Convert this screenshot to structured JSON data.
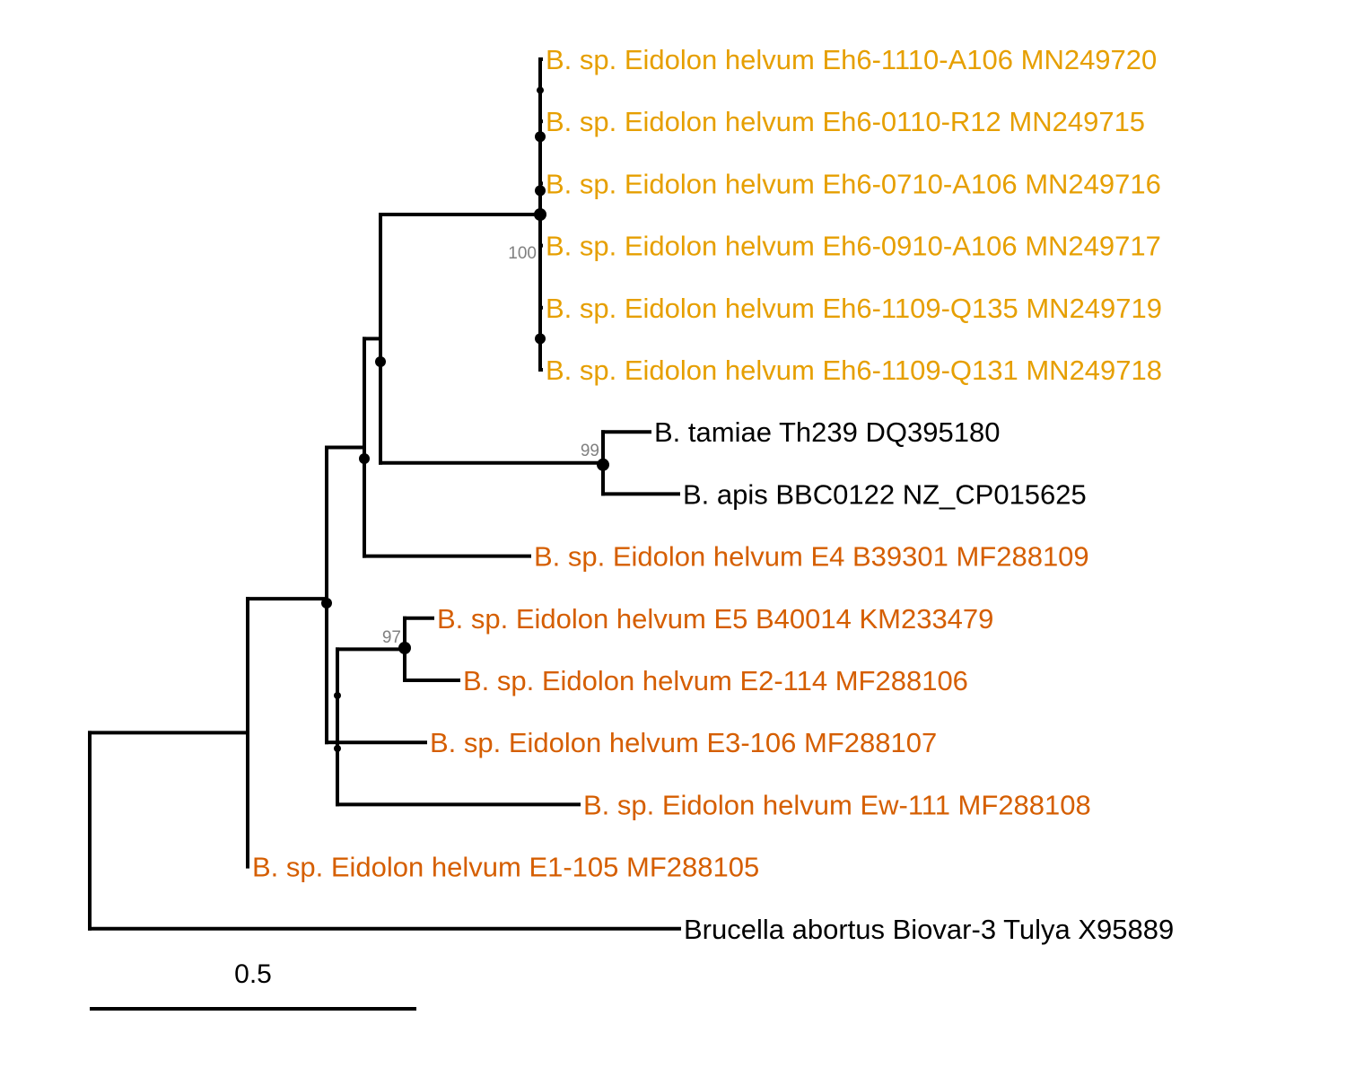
{
  "colors": {
    "branch": "#000000",
    "support_text": "#808080",
    "clade_mn": "#E69F00",
    "clade_mf": "#D55E00",
    "reference": "#000000"
  },
  "tips": [
    {
      "id": "mn720",
      "label": "B. sp. Eidolon helvum Eh6-1110-A106 MN249720",
      "group": "clade_mn"
    },
    {
      "id": "mn715",
      "label": "B. sp. Eidolon helvum Eh6-0110-R12 MN249715",
      "group": "clade_mn"
    },
    {
      "id": "mn716",
      "label": "B. sp. Eidolon helvum Eh6-0710-A106 MN249716",
      "group": "clade_mn"
    },
    {
      "id": "mn717",
      "label": "B. sp. Eidolon helvum Eh6-0910-A106 MN249717",
      "group": "clade_mn"
    },
    {
      "id": "mn719",
      "label": "B. sp. Eidolon helvum Eh6-1109-Q135 MN249719",
      "group": "clade_mn"
    },
    {
      "id": "mn718",
      "label": "B. sp. Eidolon helvum Eh6-1109-Q131 MN249718",
      "group": "clade_mn"
    },
    {
      "id": "tamiae",
      "label": "B. tamiae Th239 DQ395180",
      "group": "reference"
    },
    {
      "id": "apis",
      "label": "B. apis BBC0122 NZ_CP015625",
      "group": "reference"
    },
    {
      "id": "e4",
      "label": "B. sp. Eidolon helvum E4 B39301 MF288109",
      "group": "clade_mf"
    },
    {
      "id": "e5",
      "label": "B. sp. Eidolon helvum E5 B40014 KM233479",
      "group": "clade_mf"
    },
    {
      "id": "e2",
      "label": "B. sp. Eidolon helvum E2-114 MF288106",
      "group": "clade_mf"
    },
    {
      "id": "e3",
      "label": "B. sp. Eidolon helvum E3-106 MF288107",
      "group": "clade_mf"
    },
    {
      "id": "ew",
      "label": "B. sp. Eidolon helvum Ew-111 MF288108",
      "group": "clade_mf"
    },
    {
      "id": "e1",
      "label": "B. sp. Eidolon helvum E1-105 MF288105",
      "group": "clade_mf"
    },
    {
      "id": "brucella",
      "label": "Brucella abortus Biovar-3 Tulya X95889",
      "group": "reference"
    }
  ],
  "support_values": [
    {
      "node": "mn_clade",
      "value": "100"
    },
    {
      "node": "tamiae_apis",
      "value": "99"
    },
    {
      "node": "e5_e2",
      "value": "97"
    }
  ],
  "scale_bar": {
    "label": "0.5",
    "length": 0.5
  }
}
